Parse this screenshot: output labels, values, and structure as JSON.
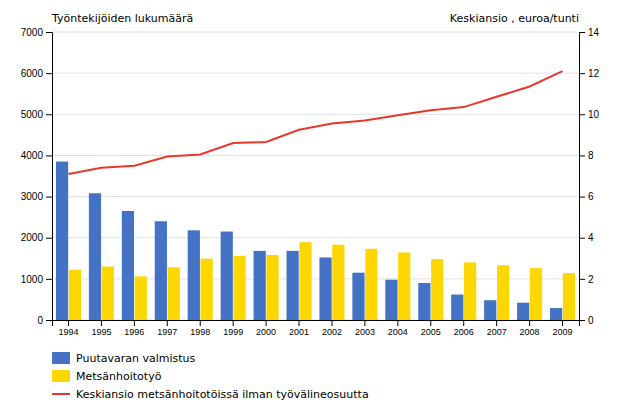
{
  "chart_data": {
    "type": "bar",
    "y_label": "Työntekijöiden lukumäärä",
    "y2_label": "Keskiansio , euroa/tunti",
    "categories": [
      "1994",
      "1995",
      "1996",
      "1997",
      "1998",
      "1999",
      "2000",
      "2001",
      "2002",
      "2003",
      "2004",
      "2005",
      "2006",
      "2007",
      "2008",
      "2009"
    ],
    "series": [
      {
        "name": "Puutavaran valmistus",
        "type": "bar",
        "color": "#4472C4",
        "values": [
          3850,
          3080,
          2650,
          2400,
          2180,
          2150,
          1680,
          1680,
          1520,
          1150,
          980,
          900,
          620,
          480,
          420,
          290
        ]
      },
      {
        "name": "Metsänhoitotyö",
        "type": "bar",
        "color": "#FFD700",
        "values": [
          1220,
          1300,
          1060,
          1280,
          1490,
          1560,
          1580,
          1890,
          1830,
          1730,
          1640,
          1480,
          1400,
          1330,
          1260,
          1140
        ]
      },
      {
        "name": "Keskiansio metsänhoitotöissä ilman työvälineosuutta",
        "type": "line",
        "axis": "y2",
        "color": "#E8382A",
        "values": [
          7.1,
          7.4,
          7.5,
          7.95,
          8.05,
          8.6,
          8.65,
          9.25,
          9.55,
          9.7,
          9.95,
          10.2,
          10.35,
          10.85,
          11.35,
          12.1
        ]
      }
    ],
    "ylim": [
      0,
      7000
    ],
    "yticks": [
      0,
      1000,
      2000,
      3000,
      4000,
      5000,
      6000,
      7000
    ],
    "y2lim": [
      0,
      14
    ],
    "y2ticks": [
      0,
      2,
      4,
      6,
      8,
      10,
      12,
      14
    ],
    "grid": true,
    "legend": "bottom"
  }
}
